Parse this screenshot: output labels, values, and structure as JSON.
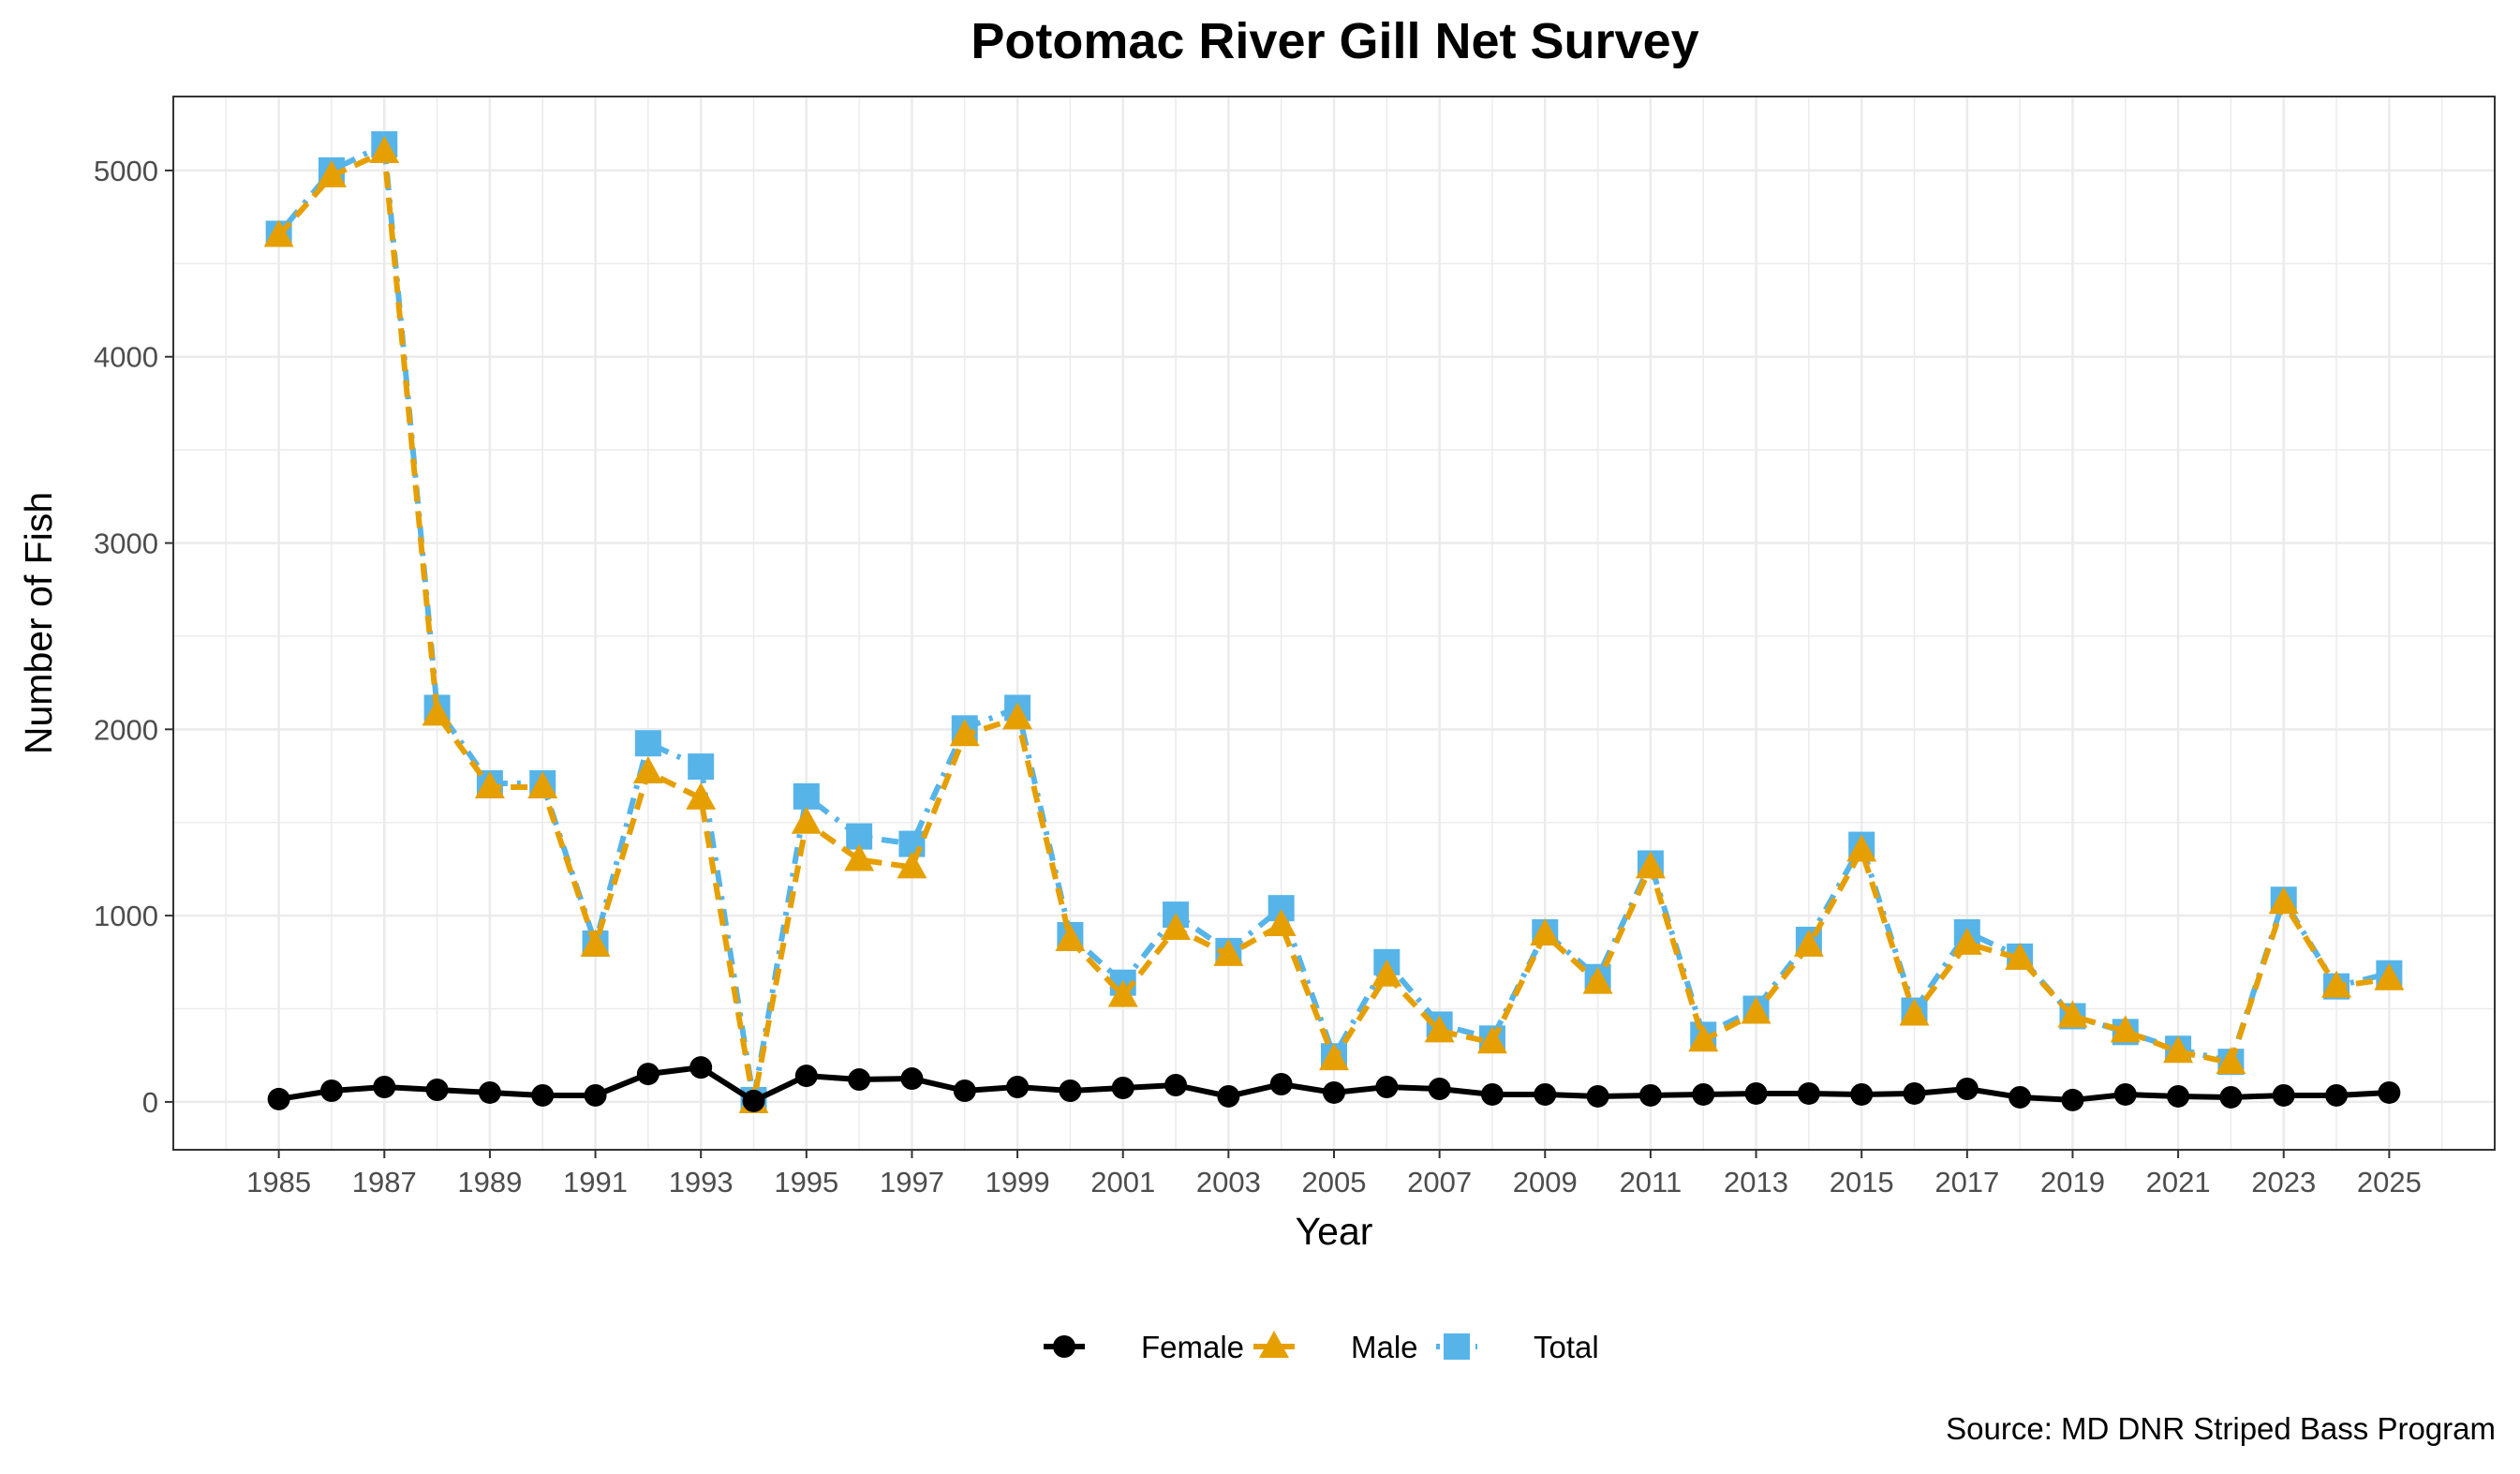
{
  "chart_data": {
    "type": "line",
    "title": "Potomac River Gill Net Survey",
    "xlabel": "Year",
    "ylabel": "Number of Fish",
    "caption": "Source: MD DNR Striped Bass Program",
    "xlim": [
      1983,
      2027
    ],
    "ylim": [
      -257,
      5397
    ],
    "x_ticks": [
      1985,
      1987,
      1989,
      1991,
      1993,
      1995,
      1997,
      1999,
      2001,
      2003,
      2005,
      2007,
      2009,
      2011,
      2013,
      2015,
      2017,
      2019,
      2021,
      2023,
      2025
    ],
    "y_ticks": [
      0,
      1000,
      2000,
      3000,
      4000,
      5000
    ],
    "grid": true,
    "legend_position": "bottom",
    "x": [
      1985,
      1986,
      1987,
      1988,
      1989,
      1990,
      1991,
      1992,
      1993,
      1994,
      1995,
      1996,
      1997,
      1998,
      1999,
      2000,
      2001,
      2002,
      2003,
      2004,
      2005,
      2006,
      2007,
      2008,
      2009,
      2010,
      2011,
      2012,
      2013,
      2014,
      2015,
      2016,
      2017,
      2018,
      2019,
      2020,
      2021,
      2022,
      2023,
      2024,
      2025
    ],
    "series": [
      {
        "name": "Female",
        "color": "#000000",
        "marker": "circle",
        "linestyle": "solid",
        "values": [
          15,
          60,
          80,
          65,
          50,
          35,
          35,
          150,
          185,
          5,
          140,
          120,
          125,
          60,
          80,
          60,
          75,
          90,
          30,
          95,
          50,
          80,
          70,
          40,
          40,
          30,
          35,
          40,
          45,
          45,
          40,
          45,
          70,
          25,
          10,
          40,
          30,
          25,
          35,
          35,
          50
        ]
      },
      {
        "name": "Male",
        "color": "#E69F00",
        "marker": "triangle",
        "linestyle": "dashed",
        "values": [
          4650,
          4970,
          5100,
          2080,
          1690,
          1690,
          840,
          1770,
          1630,
          0,
          1500,
          1300,
          1260,
          1970,
          2060,
          870,
          570,
          930,
          790,
          950,
          230,
          680,
          380,
          320,
          900,
          640,
          1260,
          330,
          480,
          840,
          1350,
          470,
          850,
          770,
          460,
          380,
          270,
          210,
          1070,
          620,
          660
        ]
      },
      {
        "name": "Total",
        "color": "#56B4E9",
        "marker": "square",
        "linestyle": "dotdash",
        "values": [
          4660,
          5000,
          5140,
          2115,
          1710,
          1710,
          850,
          1925,
          1800,
          10,
          1640,
          1425,
          1385,
          2005,
          2115,
          895,
          640,
          1005,
          810,
          1040,
          245,
          750,
          415,
          340,
          910,
          670,
          1280,
          360,
          500,
          870,
          1380,
          490,
          910,
          780,
          460,
          375,
          285,
          215,
          1085,
          620,
          690
        ]
      }
    ]
  }
}
